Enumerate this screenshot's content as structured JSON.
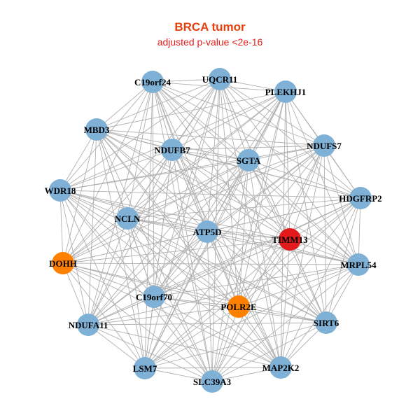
{
  "header": {
    "title": "BRCA tumor",
    "subtitle": "adjusted p-value <2e-16"
  },
  "colors": {
    "default": "#7fb0d6",
    "highlight": "#e31a1c",
    "secondary": "#ff8000",
    "edge": "#b0b0b0"
  },
  "nodes": [
    {
      "label": "C19orf24",
      "color": "default"
    },
    {
      "label": "UQCR11",
      "color": "default"
    },
    {
      "label": "PLEKHJ1",
      "color": "default"
    },
    {
      "label": "MBD3",
      "color": "default"
    },
    {
      "label": "NDUFB7",
      "color": "default"
    },
    {
      "label": "SGTA",
      "color": "default"
    },
    {
      "label": "NDUFS7",
      "color": "default"
    },
    {
      "label": "WDR18",
      "color": "default"
    },
    {
      "label": "HDGFRP2",
      "color": "default"
    },
    {
      "label": "NCLN",
      "color": "default"
    },
    {
      "label": "ATP5D",
      "color": "default"
    },
    {
      "label": "TIMM13",
      "color": "highlight"
    },
    {
      "label": "DOHH",
      "color": "secondary"
    },
    {
      "label": "MRPL54",
      "color": "default"
    },
    {
      "label": "C19orf70",
      "color": "default"
    },
    {
      "label": "POLR2E",
      "color": "secondary"
    },
    {
      "label": "NDUFA11",
      "color": "default"
    },
    {
      "label": "SIRT6",
      "color": "default"
    },
    {
      "label": "LSM7",
      "color": "default"
    },
    {
      "label": "MAP2K2",
      "color": "default"
    },
    {
      "label": "SLC39A3",
      "color": "default"
    }
  ]
}
